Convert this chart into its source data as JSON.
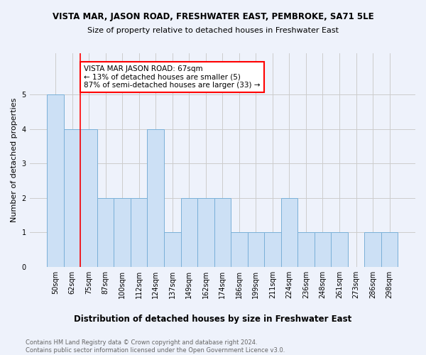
{
  "title": "VISTA MAR, JASON ROAD, FRESHWATER EAST, PEMBROKE, SA71 5LE",
  "subtitle": "Size of property relative to detached houses in Freshwater East",
  "xlabel": "Distribution of detached houses by size in Freshwater East",
  "ylabel": "Number of detached properties",
  "categories": [
    "50sqm",
    "62sqm",
    "75sqm",
    "87sqm",
    "100sqm",
    "112sqm",
    "124sqm",
    "137sqm",
    "149sqm",
    "162sqm",
    "174sqm",
    "186sqm",
    "199sqm",
    "211sqm",
    "224sqm",
    "236sqm",
    "248sqm",
    "261sqm",
    "273sqm",
    "286sqm",
    "298sqm"
  ],
  "values": [
    5,
    4,
    4,
    2,
    2,
    2,
    4,
    1,
    2,
    2,
    2,
    1,
    1,
    1,
    2,
    1,
    1,
    1,
    0,
    1,
    1
  ],
  "bar_color": "#cce0f5",
  "bar_edge_color": "#7ab0d8",
  "grid_color": "#cccccc",
  "red_line_x": 1.5,
  "annotation_text": "VISTA MAR JASON ROAD: 67sqm\n← 13% of detached houses are smaller (5)\n87% of semi-detached houses are larger (33) →",
  "annotation_box_color": "white",
  "annotation_box_edge": "red",
  "footer_text": "Contains HM Land Registry data © Crown copyright and database right 2024.\nContains public sector information licensed under the Open Government Licence v3.0.",
  "ylim": [
    0,
    6.2
  ],
  "yticks": [
    0,
    1,
    2,
    3,
    4,
    5
  ],
  "background_color": "#eef2fb"
}
